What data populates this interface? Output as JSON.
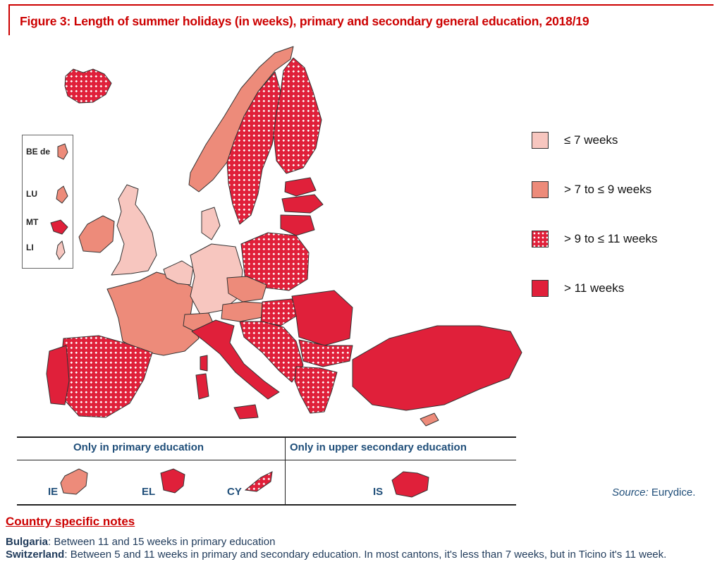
{
  "title": "Figure 3: Length of summer holidays (in weeks), primary and secondary general education, 2018/19",
  "colors": {
    "le7": "#f7c6bf",
    "7to9": "#ed8b7a",
    "9to11": "#e0203a",
    "gt11": "#e0203a",
    "title_red": "#cc0000",
    "text_blue": "#1f4e79",
    "border": "#333333"
  },
  "legend": {
    "items": [
      {
        "label": "≤ 7 weeks",
        "category": "le7"
      },
      {
        "label": "> 7 to ≤ 9 weeks",
        "category": "7to9"
      },
      {
        "label": "> 9 to ≤ 11 weeks",
        "category": "9to11"
      },
      {
        "label": "> 11 weeks",
        "category": "gt11"
      }
    ]
  },
  "inset": {
    "labels": [
      "BE de",
      "LU",
      "MT",
      "LI"
    ]
  },
  "table": {
    "headers": [
      "Only in primary education",
      "Only in upper secondary education"
    ],
    "primary_codes": [
      "IE",
      "EL",
      "CY"
    ],
    "secondary_codes": [
      "IS"
    ]
  },
  "source": {
    "label": "Source:",
    "text": " Eurydice."
  },
  "notes": {
    "heading": "Country specific notes",
    "items": [
      {
        "country": "Bulgaria",
        "text": ": Between 11 and 15 weeks in primary education"
      },
      {
        "country": "Switzerland",
        "text": ": Between 5 and 11 weeks in primary and secondary education. In most cantons, it's less than 7 weeks, but in Ticino it's 11 week."
      }
    ]
  }
}
